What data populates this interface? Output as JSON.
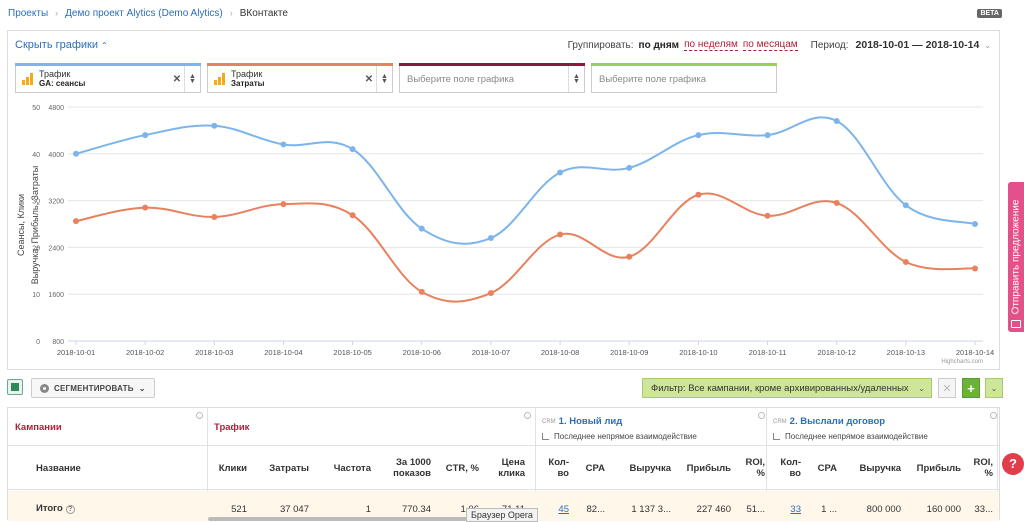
{
  "breadcrumb": {
    "items": [
      "Проекты",
      "Демо проект Alytics (Demo Alytics)"
    ],
    "current": "ВКонтакте",
    "beta": "BETA"
  },
  "chart_panel": {
    "hide_label": "Скрыть графики",
    "group_label": "Группировать:",
    "group_active": "по дням",
    "group_opt_weeks": "по неделям",
    "group_opt_months": "по месяцам",
    "period_label": "Период:",
    "period_value": "2018-10-01 — 2018-10-14"
  },
  "fields": [
    {
      "title": "Трафик",
      "sub": "GA: сеансы",
      "color": "#7cb5ec"
    },
    {
      "title": "Трафик",
      "sub": "Затраты",
      "color": "#e8825e"
    },
    {
      "placeholder": "Выберите поле графика",
      "color": "#8b1a3c"
    },
    {
      "placeholder": "Выберите поле графика",
      "color": "#9bcf5a"
    }
  ],
  "chart_data": {
    "type": "line",
    "categories": [
      "2018-10-01",
      "2018-10-02",
      "2018-10-03",
      "2018-10-04",
      "2018-10-05",
      "2018-10-06",
      "2018-10-07",
      "2018-10-08",
      "2018-10-09",
      "2018-10-10",
      "2018-10-11",
      "2018-10-12",
      "2018-10-13",
      "2018-10-14"
    ],
    "left_axis": {
      "label": "Сеансы, Клики",
      "ticks": [
        0,
        10,
        20,
        30,
        40,
        50
      ],
      "ylim": [
        0,
        50
      ]
    },
    "right_axis": {
      "label": "Выручка, Прибыль, Затраты",
      "ticks": [
        800,
        1600,
        2400,
        3200,
        4000,
        4800
      ],
      "ylim": [
        800,
        4800
      ]
    },
    "series": [
      {
        "axis": "left",
        "color": "#7cb5ec",
        "values": [
          40,
          44,
          46,
          42,
          41,
          24,
          22,
          36,
          37,
          44,
          44,
          47,
          29,
          25
        ]
      },
      {
        "axis": "right",
        "color": "#e8825e",
        "values": [
          2850,
          3080,
          2920,
          3140,
          2950,
          1640,
          1620,
          2620,
          2240,
          3300,
          2940,
          3160,
          2150,
          2040
        ]
      }
    ],
    "credit": "Highcharts.com",
    "grid": true
  },
  "toolbar": {
    "segment_label": "СЕГМЕНТИРОВАТЬ",
    "filter_label": "Фильтр: Все кампании, кроме архивированных/удаленных"
  },
  "table": {
    "group_campaigns": "Кампании",
    "group_traffic": "Трафик",
    "goal1": {
      "crm": "CRM",
      "title": "1. Новый лид",
      "sub": "Последнее непрямое взаимодействие"
    },
    "goal2": {
      "crm": "CRM",
      "title": "2. Выслали договор",
      "sub": "Последнее непрямое взаимодействие"
    },
    "headers": {
      "name": "Название",
      "clicks": "Клики",
      "costs": "Затраты",
      "freq": "Частота",
      "per1000_a": "За 1000",
      "per1000_b": "показов",
      "ctr": "CTR, %",
      "cpc_a": "Цена",
      "cpc_b": "клика",
      "g1_count_a": "Кол-",
      "g1_count_b": "во",
      "g1_cpa": "CPA",
      "g1_rev": "Выручка",
      "g1_profit": "Прибыль",
      "g1_roi_a": "ROI,",
      "g1_roi_b": "%",
      "g2_count_a": "Кол-",
      "g2_count_b": "во",
      "g2_cpa": "CPA",
      "g2_rev": "Выручка",
      "g2_profit": "Прибыль",
      "g2_roi_a": "ROI,",
      "g2_roi_b": "%"
    },
    "total": {
      "name": "Итого",
      "clicks": "521",
      "costs": "37 047",
      "freq": "1",
      "per1000": "770.34",
      "ctr": "1.06",
      "cpc": "71.11",
      "g1_count": "45",
      "g1_cpa": "82...",
      "g1_rev": "1 137 3...",
      "g1_profit": "227 460",
      "g1_roi": "51...",
      "g2_count": "33",
      "g2_cpa": "1 ...",
      "g2_rev": "800 000",
      "g2_profit": "160 000",
      "g2_roi": "33..."
    }
  },
  "tooltip": "Браузер Opera",
  "side_button": "Отправить предложение",
  "help": "?"
}
